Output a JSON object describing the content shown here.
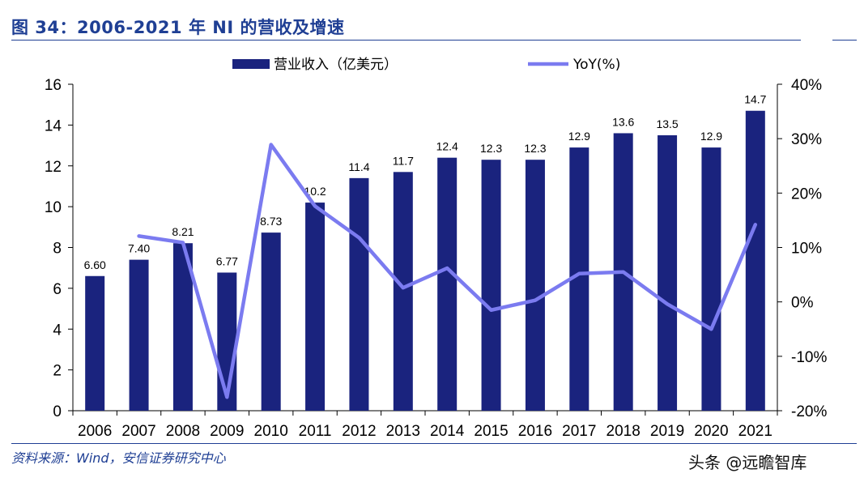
{
  "title": "图 34：2006-2021 年 NI 的营收及增速",
  "source": "资料来源：Wind，安信证券研究中心",
  "watermark": "头条 @远瞻智库",
  "colors": {
    "bar": "#1a237e",
    "line": "#7b7bf0",
    "title": "#1f3f94"
  },
  "chart_data": {
    "type": "bar",
    "categories": [
      "2006",
      "2007",
      "2008",
      "2009",
      "2010",
      "2011",
      "2012",
      "2013",
      "2014",
      "2015",
      "2016",
      "2017",
      "2018",
      "2019",
      "2020",
      "2021"
    ],
    "series": [
      {
        "name": "营业收入（亿美元）",
        "type": "bar",
        "axis": "left",
        "values": [
          6.6,
          7.4,
          8.21,
          6.77,
          8.73,
          10.2,
          11.4,
          11.7,
          12.4,
          12.3,
          12.3,
          12.9,
          13.6,
          13.5,
          12.9,
          14.7
        ],
        "labels": [
          "6.60",
          "7.40",
          "8.21",
          "6.77",
          "8.73",
          "10.2",
          "11.4",
          "11.7",
          "12.4",
          "12.3",
          "12.3",
          "12.9",
          "13.6",
          "13.5",
          "12.9",
          "14.7"
        ]
      },
      {
        "name": "YoY(%)",
        "type": "line",
        "axis": "right",
        "values": [
          null,
          12.1,
          10.9,
          -17.5,
          28.9,
          17.6,
          11.8,
          2.6,
          6.2,
          -1.5,
          0.3,
          5.2,
          5.5,
          -0.4,
          -5.0,
          14.2
        ]
      }
    ],
    "y_left": {
      "min": 0,
      "max": 16,
      "ticks": [
        "0",
        "2",
        "4",
        "6",
        "8",
        "10",
        "12",
        "14",
        "16"
      ],
      "tick_values": [
        0,
        2,
        4,
        6,
        8,
        10,
        12,
        14,
        16
      ]
    },
    "y_right": {
      "min": -20,
      "max": 40,
      "ticks": [
        "-20%",
        "-10%",
        "0%",
        "10%",
        "20%",
        "30%",
        "40%"
      ],
      "tick_values": [
        -20,
        -10,
        0,
        10,
        20,
        30,
        40
      ]
    },
    "legend": [
      "营业收入（亿美元）",
      "YoY(%)"
    ],
    "legend_position": "top"
  }
}
